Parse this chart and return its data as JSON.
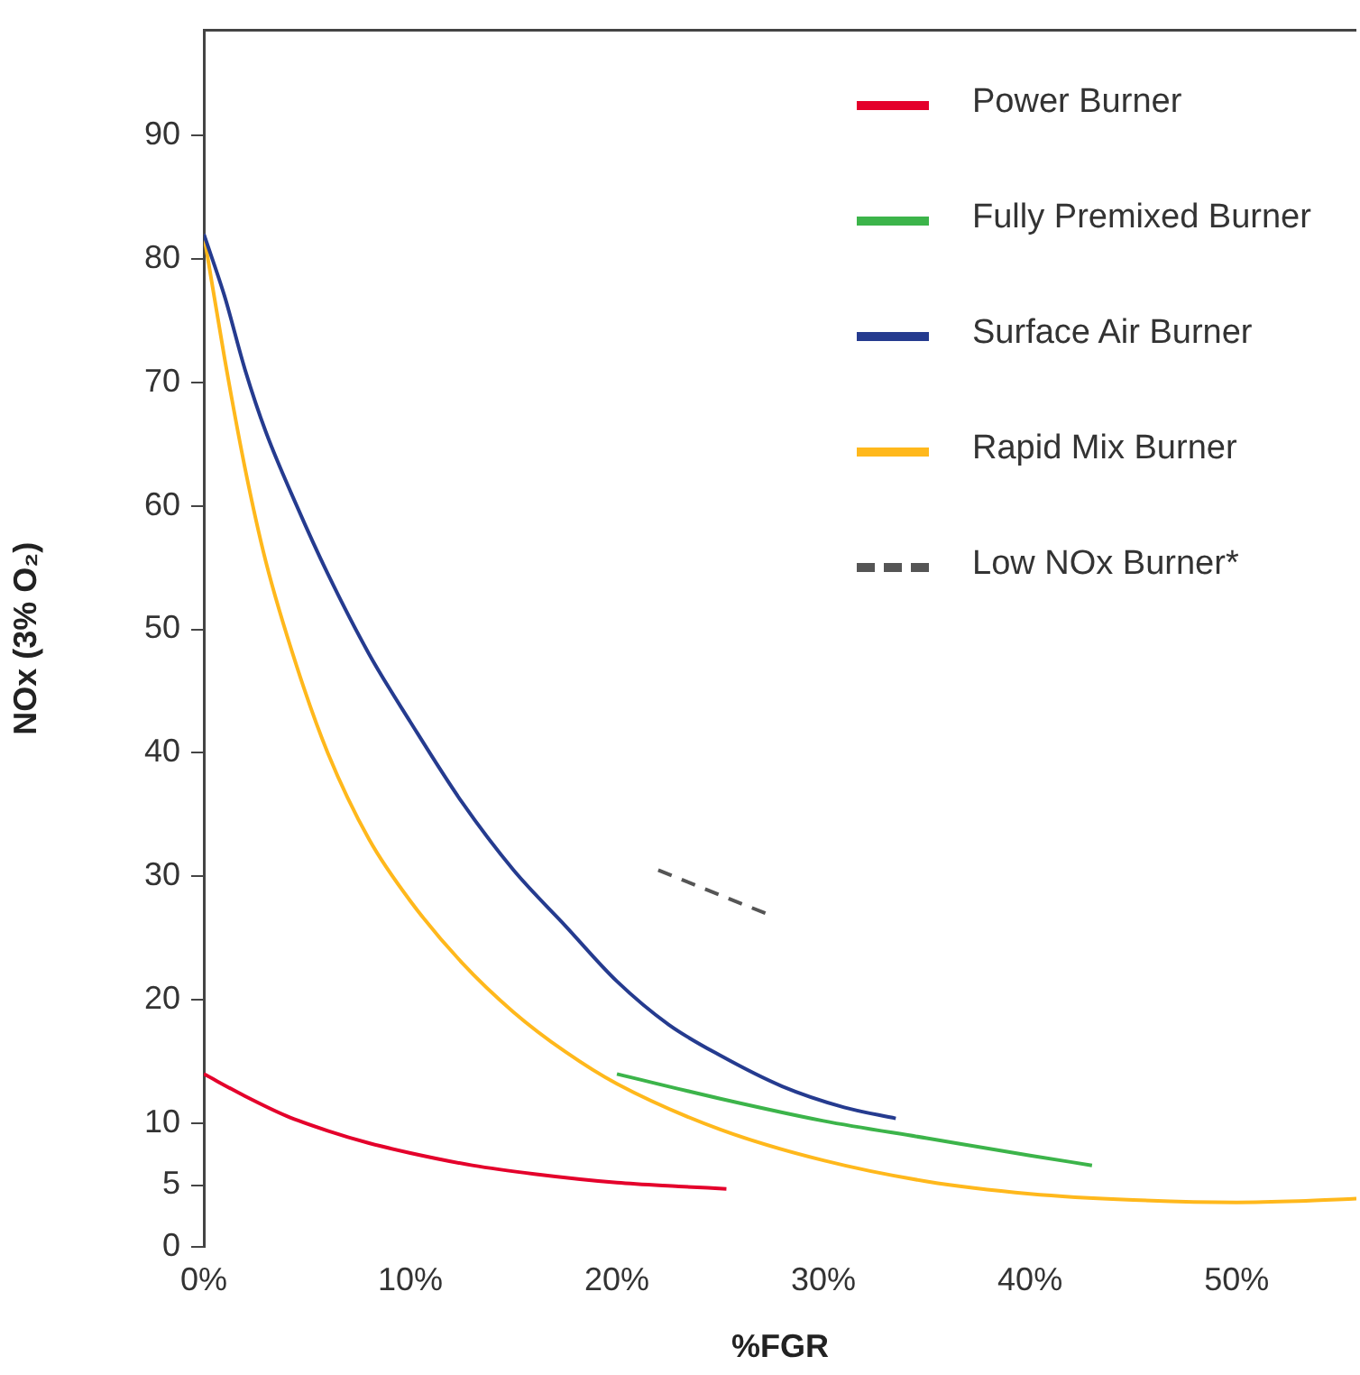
{
  "chart_data": {
    "type": "line",
    "xlabel": "%FGR",
    "ylabel": "NOx (3% O₂)",
    "xlim": [
      0,
      55.8
    ],
    "ylim": [
      0,
      98.5
    ],
    "xticks": [
      {
        "value": 0,
        "label": "0%"
      },
      {
        "value": 10,
        "label": "10%"
      },
      {
        "value": 20,
        "label": "20%"
      },
      {
        "value": 30,
        "label": "30%"
      },
      {
        "value": 40,
        "label": "40%"
      },
      {
        "value": 50,
        "label": "50%"
      }
    ],
    "yticks": [
      0,
      5,
      10,
      20,
      30,
      40,
      50,
      60,
      70,
      80,
      90
    ],
    "grid": false,
    "legend": "top right",
    "marker": "none",
    "series": [
      {
        "name": "Power Burner",
        "color": "#e4002b",
        "x": [
          0,
          2,
          4,
          6,
          8,
          10,
          13,
          16,
          20,
          23,
          25.3
        ],
        "values": [
          14,
          12.2,
          10.6,
          9.4,
          8.4,
          7.6,
          6.6,
          5.9,
          5.2,
          4.9,
          4.7
        ]
      },
      {
        "name": "Fully Premixed Burner",
        "color": "#3cb44a",
        "x": [
          20,
          25,
          30,
          35,
          40,
          43
        ],
        "values": [
          14,
          12,
          10.2,
          8.8,
          7.4,
          6.6
        ]
      },
      {
        "name": "Surface Air Burner",
        "color": "#253b8f",
        "x": [
          0,
          1,
          2,
          3,
          4.5,
          6,
          8,
          10,
          12.5,
          15,
          17.5,
          20,
          22.5,
          25,
          28,
          31,
          33.5
        ],
        "values": [
          82,
          77,
          71,
          66,
          60,
          54.5,
          48,
          42.5,
          36,
          30.5,
          26,
          21.5,
          18,
          15.5,
          13,
          11.3,
          10.4
        ]
      },
      {
        "name": "Rapid Mix Burner",
        "color": "#ffb81c",
        "x": [
          0,
          1,
          2,
          3,
          4.5,
          6,
          8,
          10,
          12.5,
          15,
          17.5,
          20,
          25,
          30,
          35,
          40,
          45,
          50,
          53,
          55.8
        ],
        "values": [
          82,
          72,
          63,
          55.5,
          47,
          40,
          33,
          28,
          23,
          19,
          15.8,
          13.2,
          9.5,
          7,
          5.3,
          4.3,
          3.8,
          3.6,
          3.7,
          3.9
        ]
      },
      {
        "name": "Low NOx Burner*",
        "color": "#555555",
        "line_style": "dashed",
        "x": [
          22,
          27.5
        ],
        "values": [
          30.5,
          26.8
        ]
      }
    ]
  }
}
